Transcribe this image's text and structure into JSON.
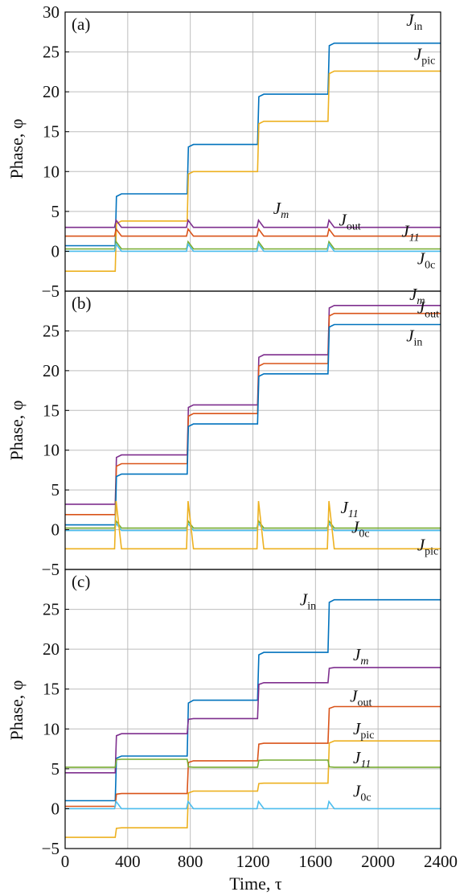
{
  "figure": {
    "xlabel": "Time, τ",
    "ylabel": "Phase, φ"
  },
  "colors": {
    "J_in": "#0072BD",
    "J_pic": "#EDB120",
    "J_m": "#7E2F8E",
    "J_out": "#D95319",
    "J_11": "#77AC30",
    "J_0c": "#4DBEEE",
    "grid": "#BDBDBD",
    "axis": "#000000"
  },
  "chart_data": [
    {
      "type": "line",
      "panel_label": "(a)",
      "xlim": [
        0,
        2400
      ],
      "ylim": [
        -5,
        30
      ],
      "x_ticks": [
        "0",
        "400",
        "800",
        "1200",
        "1600",
        "2000",
        "2400"
      ],
      "y_ticks": [
        "−5",
        "0",
        "5",
        "10",
        "15",
        "20",
        "25",
        "30"
      ],
      "grid": true,
      "switch_times": [
        320,
        780,
        1230,
        1680
      ],
      "series": [
        {
          "key": "J_in",
          "label_main": "J",
          "label_sub": "in",
          "levels": [
            0.7,
            7.2,
            13.4,
            19.7,
            26.1
          ]
        },
        {
          "key": "J_pic",
          "label_main": "J",
          "label_sub": "pic",
          "levels": [
            -2.5,
            3.8,
            10.0,
            16.3,
            22.6
          ]
        },
        {
          "key": "J_m",
          "label_main": "J",
          "label_sub": "m",
          "levels": [
            3.0,
            3.0,
            3.0,
            3.0,
            3.0
          ]
        },
        {
          "key": "J_out",
          "label_main": "J",
          "label_sub": "out",
          "levels": [
            1.9,
            1.9,
            1.9,
            1.9,
            1.9
          ]
        },
        {
          "key": "J_11",
          "label_main": "J",
          "label_sub": "11",
          "levels": [
            0.3,
            0.3,
            0.3,
            0.3,
            0.3
          ]
        },
        {
          "key": "J_0c",
          "label_main": "J",
          "label_sub": "0c",
          "levels": [
            0.0,
            0.0,
            0.0,
            0.0,
            0.0
          ]
        }
      ]
    },
    {
      "type": "line",
      "panel_label": "(b)",
      "xlim": [
        0,
        2400
      ],
      "ylim": [
        -5,
        30
      ],
      "x_ticks": [
        "0",
        "400",
        "800",
        "1200",
        "1600",
        "2000",
        "2400"
      ],
      "y_ticks": [
        "−5",
        "0",
        "5",
        "10",
        "15",
        "20",
        "25"
      ],
      "grid": true,
      "switch_times": [
        320,
        780,
        1230,
        1680
      ],
      "series": [
        {
          "key": "J_m",
          "label_main": "J",
          "label_sub": "m",
          "levels": [
            3.2,
            9.4,
            15.7,
            22.0,
            28.2
          ]
        },
        {
          "key": "J_out",
          "label_main": "J",
          "label_sub": "out",
          "levels": [
            1.9,
            8.3,
            14.6,
            20.9,
            27.2
          ]
        },
        {
          "key": "J_in",
          "label_main": "J",
          "label_sub": "in",
          "levels": [
            0.6,
            7.0,
            13.3,
            19.6,
            25.8
          ]
        },
        {
          "key": "J_11",
          "label_main": "J",
          "label_sub": "11",
          "levels": [
            0.2,
            0.2,
            0.2,
            0.2,
            0.2
          ]
        },
        {
          "key": "J_0c",
          "label_main": "J",
          "label_sub": "0c",
          "levels": [
            -0.1,
            -0.1,
            -0.1,
            -0.1,
            -0.1
          ]
        },
        {
          "key": "J_pic",
          "label_main": "J",
          "label_sub": "pic",
          "levels": [
            -2.4,
            -2.4,
            -2.4,
            -2.4,
            -2.4
          ]
        }
      ]
    },
    {
      "type": "line",
      "panel_label": "(c)",
      "xlim": [
        0,
        2400
      ],
      "ylim": [
        -5,
        30
      ],
      "x_ticks": [
        "0",
        "400",
        "800",
        "1200",
        "1600",
        "2000",
        "2400"
      ],
      "y_ticks": [
        "−5",
        "0",
        "5",
        "10",
        "15",
        "20",
        "25"
      ],
      "grid": true,
      "switch_times": [
        320,
        780,
        1230,
        1680
      ],
      "series": [
        {
          "key": "J_in",
          "label_main": "J",
          "label_sub": "in",
          "levels": [
            1.0,
            6.6,
            13.6,
            19.6,
            26.2
          ]
        },
        {
          "key": "J_m",
          "label_main": "J",
          "label_sub": "m",
          "levels": [
            4.5,
            9.4,
            11.3,
            15.8,
            17.7
          ]
        },
        {
          "key": "J_out",
          "label_main": "J",
          "label_sub": "out",
          "levels": [
            0.3,
            1.9,
            6.0,
            8.2,
            12.8
          ]
        },
        {
          "key": "J_pic",
          "label_main": "J",
          "label_sub": "pic",
          "levels": [
            -3.6,
            -2.4,
            2.2,
            3.2,
            8.5
          ]
        },
        {
          "key": "J_11",
          "label_main": "J",
          "label_sub": "11",
          "levels": [
            5.2,
            6.2,
            5.2,
            6.1,
            5.2
          ]
        },
        {
          "key": "J_0c",
          "label_main": "J",
          "label_sub": "0c",
          "levels": [
            0.0,
            0.0,
            0.0,
            0.0,
            0.0
          ]
        }
      ]
    }
  ]
}
